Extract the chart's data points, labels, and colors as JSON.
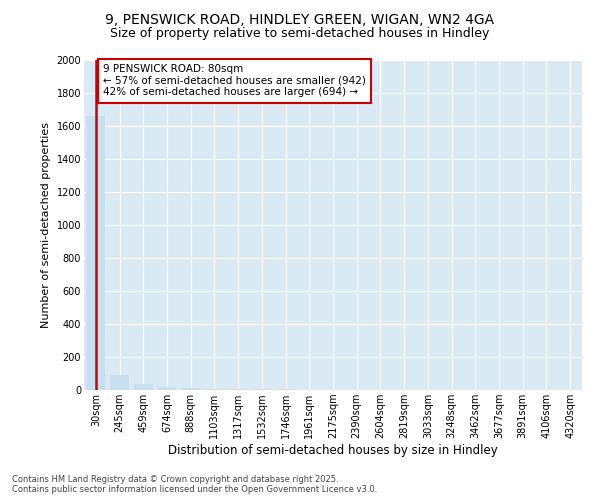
{
  "title1": "9, PENSWICK ROAD, HINDLEY GREEN, WIGAN, WN2 4GA",
  "title2": "Size of property relative to semi-detached houses in Hindley",
  "xlabel": "Distribution of semi-detached houses by size in Hindley",
  "ylabel": "Number of semi-detached properties",
  "categories": [
    "30sqm",
    "245sqm",
    "459sqm",
    "674sqm",
    "888sqm",
    "1103sqm",
    "1317sqm",
    "1532sqm",
    "1746sqm",
    "1961sqm",
    "2175sqm",
    "2390sqm",
    "2604sqm",
    "2819sqm",
    "3033sqm",
    "3248sqm",
    "3462sqm",
    "3677sqm",
    "3891sqm",
    "4106sqm",
    "4320sqm"
  ],
  "values": [
    1660,
    90,
    35,
    20,
    12,
    8,
    6,
    5,
    4,
    3,
    3,
    3,
    2,
    2,
    2,
    2,
    2,
    1,
    1,
    1,
    1
  ],
  "bar_color": "#c8dff0",
  "annotation_box_text": "9 PENSWICK ROAD: 80sqm\n← 57% of semi-detached houses are smaller (942)\n42% of semi-detached houses are larger (694) →",
  "annotation_box_color": "#cc0000",
  "vline_color": "#cc0000",
  "ylim": [
    0,
    2000
  ],
  "yticks": [
    0,
    200,
    400,
    600,
    800,
    1000,
    1200,
    1400,
    1600,
    1800,
    2000
  ],
  "background_color": "#daeaf5",
  "footer": "Contains HM Land Registry data © Crown copyright and database right 2025.\nContains public sector information licensed under the Open Government Licence v3.0.",
  "title1_fontsize": 10,
  "title2_fontsize": 9,
  "annotation_fontsize": 7.5,
  "tick_fontsize": 7,
  "ylabel_fontsize": 8,
  "xlabel_fontsize": 8.5,
  "footer_fontsize": 6
}
